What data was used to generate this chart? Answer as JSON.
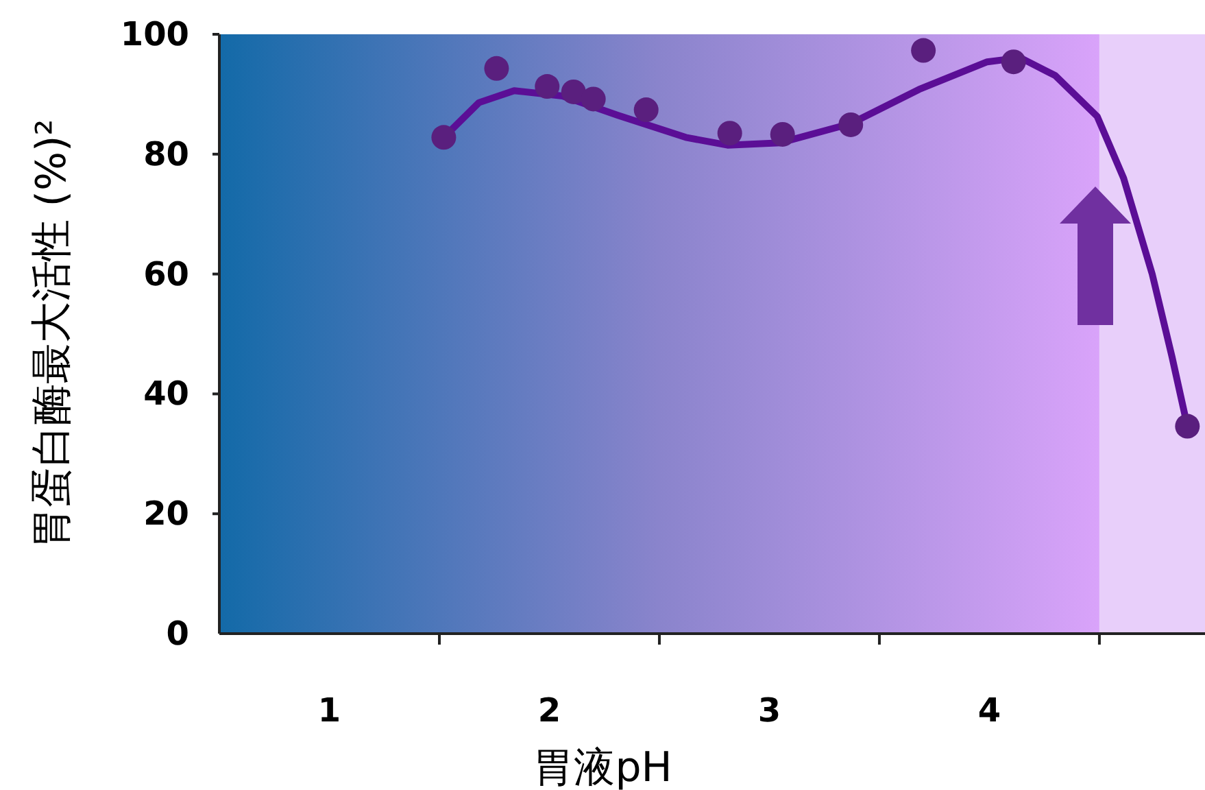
{
  "chart_data": {
    "type": "scatter",
    "xlabel": "胃液pH",
    "ylabel": "胃蛋白酶最大活性 (%)²",
    "xlim": [
      0.5,
      4.98
    ],
    "ylim": [
      0,
      100
    ],
    "xticks": [
      {
        "value": 1,
        "label": "1"
      },
      {
        "value": 1.5,
        "label": null
      },
      {
        "value": 2,
        "label": "2"
      },
      {
        "value": 2.5,
        "label": null
      },
      {
        "value": 3,
        "label": "3"
      },
      {
        "value": 3.5,
        "label": null
      },
      {
        "value": 4,
        "label": "4"
      },
      {
        "value": 4.5,
        "label": null
      }
    ],
    "yticks": [
      0,
      20,
      40,
      60,
      80,
      100
    ],
    "grid": false,
    "bands": [
      {
        "axis": "x",
        "from": 0.5,
        "to": 4.5,
        "color": "#8a84cc"
      },
      {
        "axis": "x",
        "from": 4.5,
        "to": 4.98,
        "color": "#e8cffa"
      }
    ],
    "series": [
      {
        "marker": "circle",
        "color": "#5a1f7e",
        "x": [
          1.52,
          1.76,
          1.99,
          2.11,
          2.2,
          2.44,
          2.82,
          3.06,
          3.37,
          3.7,
          4.11,
          4.9
        ],
        "values": [
          82.8,
          94.3,
          91.3,
          90.4,
          89.2,
          87.4,
          83.5,
          83.3,
          84.9,
          97.3,
          95.4,
          34.6
        ]
      },
      {
        "type": "line",
        "color": "#5b0e96",
        "x": [
          1.52,
          1.68,
          1.84,
          2.06,
          2.31,
          2.62,
          2.81,
          3.05,
          3.37,
          3.68,
          3.99,
          4.14,
          4.3,
          4.49,
          4.61,
          4.74,
          4.83,
          4.9
        ],
        "values": [
          82.8,
          88.6,
          90.6,
          89.7,
          86.5,
          82.8,
          81.5,
          81.9,
          85.1,
          90.8,
          95.4,
          96.1,
          93.1,
          86.3,
          76,
          60,
          46.2,
          34.6
        ]
      }
    ]
  }
}
